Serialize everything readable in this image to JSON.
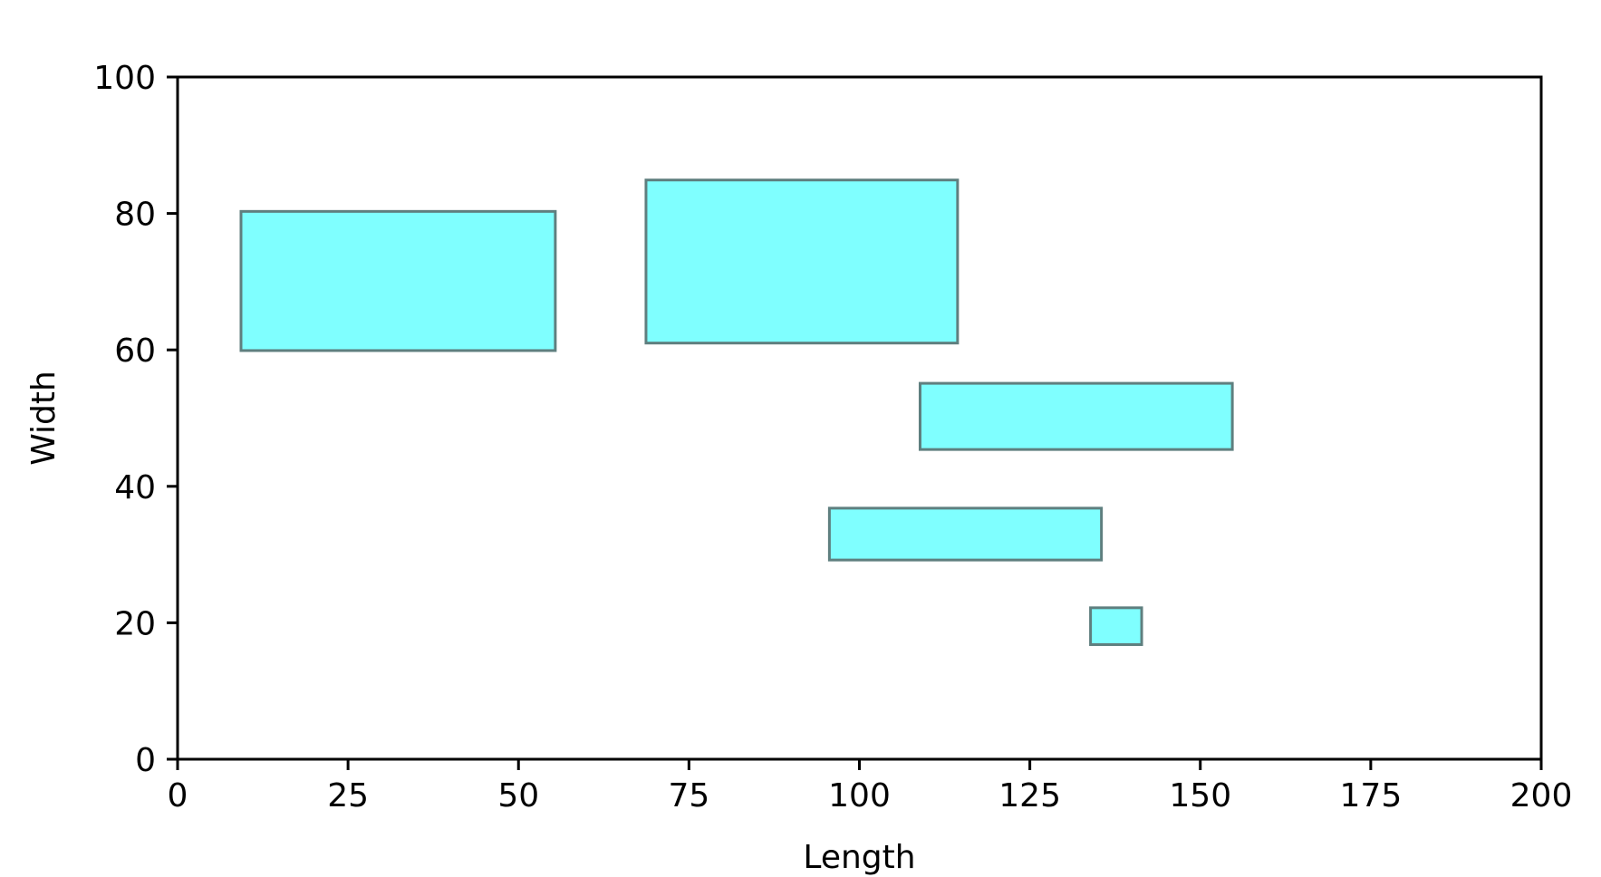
{
  "chart_data": {
    "type": "rectangles",
    "title": "",
    "xlabel": "Length",
    "ylabel": "Width",
    "xlim": [
      0,
      200
    ],
    "ylim": [
      0,
      100
    ],
    "xticks": [
      0,
      25,
      50,
      75,
      100,
      125,
      150,
      175,
      200
    ],
    "yticks": [
      0,
      20,
      40,
      60,
      80,
      100
    ],
    "xtick_labels": [
      "0",
      "25",
      "50",
      "75",
      "100",
      "125",
      "150",
      "175",
      "200"
    ],
    "ytick_labels": [
      "0",
      "20",
      "40",
      "60",
      "80",
      "100"
    ],
    "grid": false,
    "rectangles": [
      {
        "x0": 9.3,
        "x1": 55.4,
        "y0": 59.9,
        "y1": 80.3
      },
      {
        "x0": 68.7,
        "x1": 114.4,
        "y0": 61.0,
        "y1": 84.9
      },
      {
        "x0": 108.9,
        "x1": 154.7,
        "y0": 45.4,
        "y1": 55.1
      },
      {
        "x0": 95.6,
        "x1": 135.5,
        "y0": 29.2,
        "y1": 36.8
      },
      {
        "x0": 133.9,
        "x1": 141.4,
        "y0": 16.8,
        "y1": 22.2
      }
    ],
    "colors": {
      "fill": "#7fffff",
      "edge": "#5f7f7f",
      "axis": "#000000"
    }
  }
}
